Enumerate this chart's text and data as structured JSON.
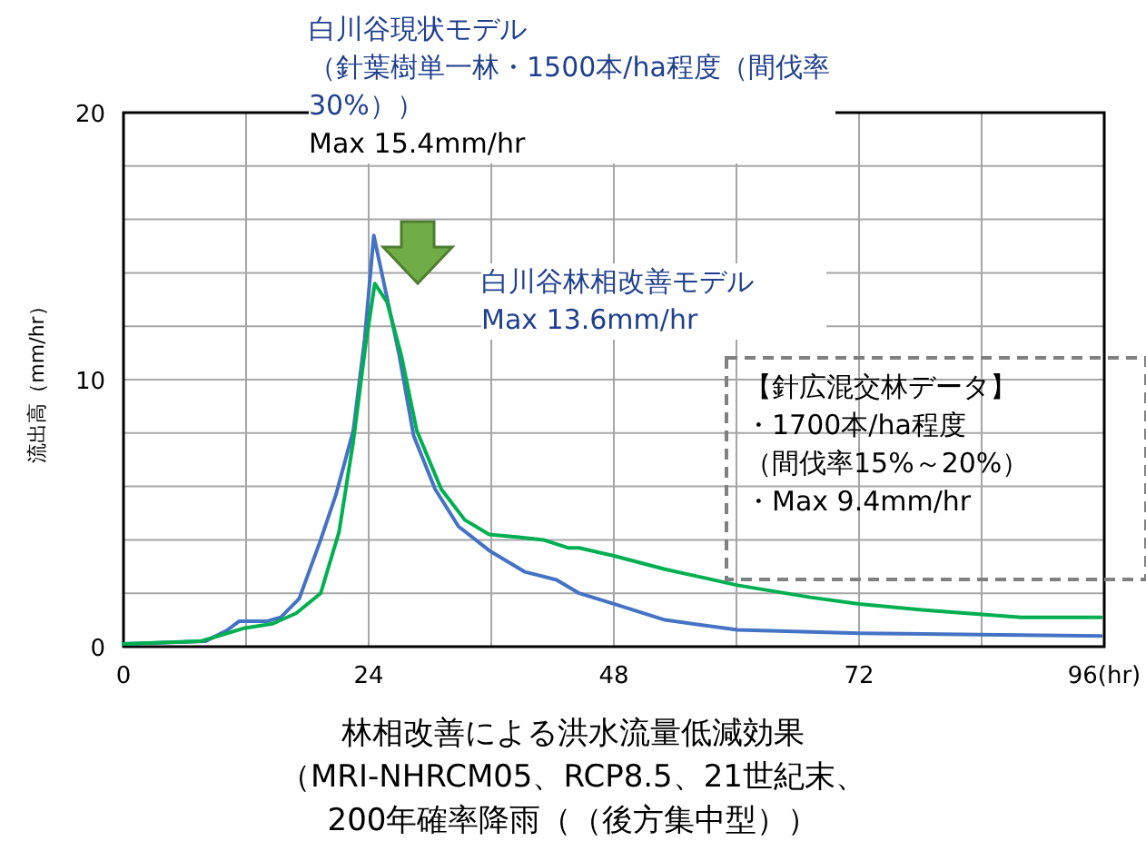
{
  "chart_data": {
    "type": "line",
    "title": "林相改善による洪水流量低減効果",
    "subtitle": "（MRI-NHRCM05、RCP8.5、21世紀末、200年確率降雨（（後方集中型））",
    "ylabel": "流出高（mm/hr）",
    "annotations": [
      "白川谷現状モデル",
      "（針葉樹単一林・1500本/ha程度（間伐率30%））",
      "Max 15.4mm/hr",
      "白川谷林相改善モデル",
      "Max 13.6mm/hr",
      "【針広混交林データ】",
      "・1700本/ha程度",
      "（間伐率15%～20%）",
      "・Max 9.4mm/hr"
    ],
    "xlim": [
      0,
      96
    ],
    "ylim": [
      0,
      20
    ],
    "xticks": [
      0,
      {
        "value": 12,
        "label": null
      },
      24,
      {
        "value": 36,
        "label": null
      },
      48,
      {
        "value": 60,
        "label": null
      },
      72,
      {
        "value": 84,
        "label": null
      },
      {
        "value": 96,
        "label": "96(hr)"
      }
    ],
    "yticks": [
      0,
      {
        "value": 2,
        "label": null
      },
      {
        "value": 4,
        "label": null
      },
      {
        "value": 6,
        "label": null
      },
      {
        "value": 8,
        "label": null
      },
      10,
      {
        "value": 12,
        "label": null
      },
      {
        "value": 14,
        "label": null
      },
      {
        "value": 16,
        "label": null
      },
      {
        "value": 18,
        "label": null
      },
      20
    ],
    "grid": true,
    "marker": "none",
    "line_style": "solid",
    "series": [
      {
        "color": "#4472c4",
        "x": [
          0,
          8,
          10.1,
          11.3,
          14,
          15.4,
          17.2,
          19.3,
          20.8,
          22.5,
          23.6,
          24.5,
          25.5,
          27,
          28.4,
          30.5,
          32.8,
          35.8,
          39.3,
          42.4,
          44.6,
          48,
          53,
          60.1,
          72,
          83.8,
          95.7
        ],
        "values": [
          0.1,
          0.2,
          0.6,
          0.95,
          0.95,
          1.1,
          1.8,
          4.0,
          5.7,
          8.1,
          11.5,
          15.4,
          13.6,
          10.9,
          7.9,
          5.9,
          4.5,
          3.6,
          2.8,
          2.5,
          2.0,
          1.6,
          1.0,
          0.63,
          0.5,
          0.45,
          0.4
        ]
      },
      {
        "color": "#00b050",
        "x": [
          0,
          7.5,
          11.9,
          14.6,
          16.9,
          19.3,
          21.1,
          22.5,
          23.7,
          24.6,
          25.8,
          27.2,
          28.7,
          31.1,
          33.4,
          35.8,
          38.7,
          41.1,
          43.5,
          44.6,
          48,
          53,
          60.1,
          67.2,
          72,
          79,
          87.9,
          95.7
        ],
        "values": [
          0.1,
          0.2,
          0.7,
          0.86,
          1.25,
          2.0,
          4.3,
          7.7,
          11.3,
          13.6,
          12.9,
          10.9,
          8.1,
          5.9,
          4.75,
          4.2,
          4.1,
          4.0,
          3.7,
          3.7,
          3.4,
          2.9,
          2.3,
          1.85,
          1.6,
          1.35,
          1.1,
          1.1
        ]
      }
    ]
  }
}
